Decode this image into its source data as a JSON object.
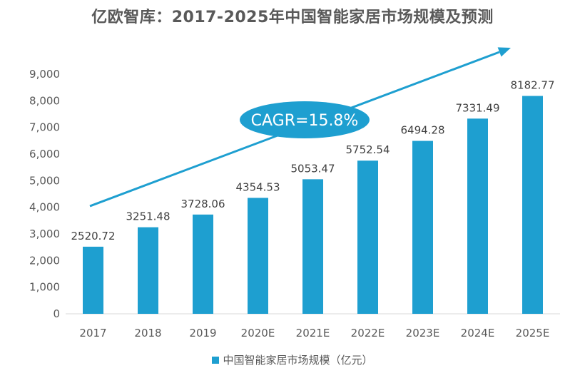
{
  "chart_data": {
    "type": "bar",
    "title": "亿欧智库：2017-2025年中国智能家居市场规模及预测",
    "categories": [
      "2017",
      "2018",
      "2019",
      "2020E",
      "2021E",
      "2022E",
      "2023E",
      "2024E",
      "2025E"
    ],
    "values": [
      2520.72,
      3251.48,
      3728.06,
      4354.53,
      5053.47,
      5752.54,
      6494.28,
      7331.49,
      8182.77
    ],
    "value_labels": [
      "2520.72",
      "3251.48",
      "3728.06",
      "4354.53",
      "5053.47",
      "5752.54",
      "6494.28",
      "7331.49",
      "8182.77"
    ],
    "ylim": [
      0,
      9000
    ],
    "yticks": [
      0,
      1000,
      2000,
      3000,
      4000,
      5000,
      6000,
      7000,
      8000,
      9000
    ],
    "ytick_labels": [
      "0",
      "1,000",
      "2,000",
      "3,000",
      "4,000",
      "5,000",
      "6,000",
      "7,000",
      "8,000",
      "9,000"
    ],
    "legend": {
      "label": "中国智能家居市场规模（亿元）",
      "position": "bottom"
    },
    "annotation": {
      "text": "CAGR=15.8%"
    },
    "colors": {
      "bar": "#1e9fd0",
      "arrow": "#1e9fd0",
      "annotation_fill": "#1e9fd0",
      "annotation_text": "#ffffff"
    }
  }
}
